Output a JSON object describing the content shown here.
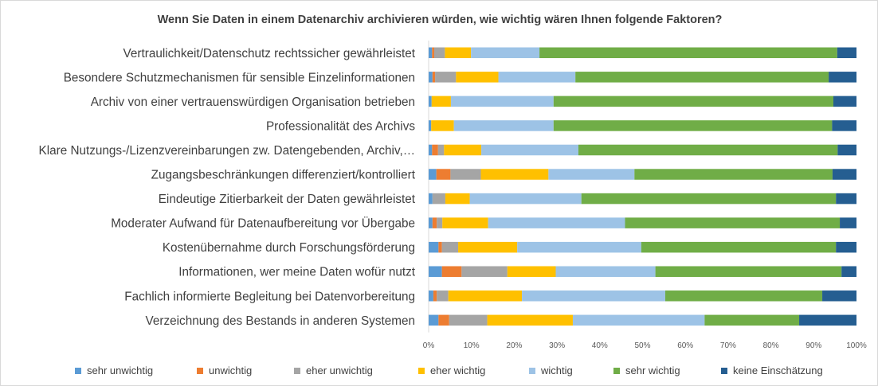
{
  "chart_data": {
    "type": "bar",
    "orientation": "horizontal",
    "stacked": "percent",
    "title": "Wenn Sie Daten in einem Datenarchiv archivieren würden, wie wichtig wären Ihnen folgende Faktoren?",
    "categories": [
      "Vertraulichkeit/Datenschutz rechtssicher gewährleistet",
      "Besondere Schutzmechanismen für sensible Einzelinformationen",
      "Archiv von einer vertrauenswürdigen Organisation betrieben",
      "Professionalität des Archivs",
      "Klare Nutzungs-/Lizenzvereinbarungen zw. Datengebenden, Archiv,…",
      "Zugangsbeschränkungen differenziert/kontrolliert",
      "Eindeutige Zitierbarkeit der Daten gewährleistet",
      "Moderater Aufwand für Datenaufbereitung vor Übergabe",
      "Kostenübernahme durch Forschungsförderung",
      "Informationen, wer meine Daten wofür nutzt",
      "Fachlich informierte Begleitung bei Datenvorbereitung",
      "Verzeichnung des Bestands in anderen Systemen"
    ],
    "series": [
      {
        "name": "sehr unwichtig",
        "color": "#5b9bd5",
        "values": [
          0.8,
          0.9,
          0.7,
          0.6,
          0.8,
          1.8,
          0.9,
          0.9,
          2.3,
          3.1,
          1.1,
          2.3
        ]
      },
      {
        "name": "unwichtig",
        "color": "#ed7d31",
        "values": [
          0.5,
          0.6,
          0.0,
          0.0,
          1.4,
          3.3,
          0.0,
          1.0,
          0.8,
          4.6,
          0.8,
          2.5
        ]
      },
      {
        "name": "eher unwichtig",
        "color": "#a5a5a5",
        "values": [
          2.5,
          4.9,
          0.0,
          0.0,
          1.4,
          7.1,
          3.0,
          1.3,
          3.8,
          10.7,
          2.7,
          8.9
        ]
      },
      {
        "name": "eher wichtig",
        "color": "#ffc000",
        "values": [
          6.1,
          9.9,
          4.5,
          5.3,
          8.7,
          15.8,
          5.7,
          10.7,
          13.8,
          11.3,
          17.2,
          20.0
        ]
      },
      {
        "name": "wichtig",
        "color": "#9dc3e6",
        "values": [
          16.0,
          18.0,
          24.0,
          23.3,
          22.7,
          20.1,
          26.1,
          32.0,
          29.0,
          23.3,
          33.5,
          30.8
        ]
      },
      {
        "name": "sehr wichtig",
        "color": "#70ad47",
        "values": [
          69.6,
          59.2,
          65.4,
          65.1,
          60.6,
          46.3,
          59.5,
          50.2,
          45.5,
          43.5,
          36.7,
          22.1
        ]
      },
      {
        "name": "keine Einschätzung",
        "color": "#255e91",
        "values": [
          4.5,
          6.5,
          5.4,
          5.7,
          4.4,
          5.6,
          4.8,
          3.9,
          4.8,
          3.5,
          8.0,
          13.4
        ]
      }
    ],
    "x_ticks": [
      "0%",
      "10%",
      "20%",
      "30%",
      "40%",
      "50%",
      "60%",
      "70%",
      "80%",
      "90%",
      "100%"
    ],
    "xlim": [
      0,
      100
    ],
    "xlabel": "",
    "ylabel": "",
    "grid": false,
    "legend_position": "bottom"
  }
}
